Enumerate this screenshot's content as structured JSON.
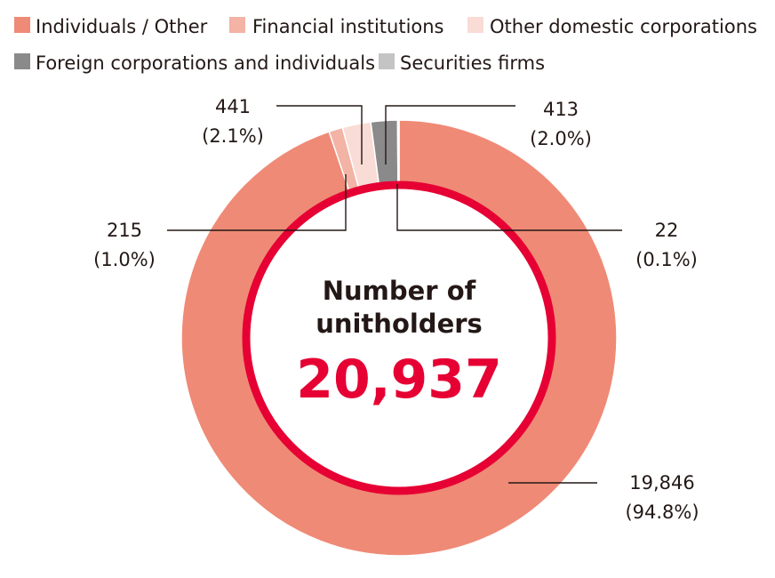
{
  "chart_data": {
    "type": "pie",
    "legend_position": "top",
    "center": {
      "title_line1": "Number of",
      "title_line2": "unitholders",
      "total": "20,937",
      "total_color": "#e60033"
    },
    "series": [
      {
        "name": "Individuals / Other",
        "value": 19846,
        "value_label": "19,846",
        "percent_label": "(94.8%)",
        "color": "#ef8a76"
      },
      {
        "name": "Financial institutions",
        "value": 215,
        "value_label": "215",
        "percent_label": "(1.0%)",
        "color": "#f3b3a5"
      },
      {
        "name": "Other domestic corporations",
        "value": 441,
        "value_label": "441",
        "percent_label": "(2.1%)",
        "color": "#f9dcd5"
      },
      {
        "name": "Foreign corporations and individuals",
        "value": 413,
        "value_label": "413",
        "percent_label": "(2.0%)",
        "color": "#8a8a8a"
      },
      {
        "name": "Securities firms",
        "value": 22,
        "value_label": "22",
        "percent_label": "(0.1%)",
        "color": "#c4c4c4"
      }
    ]
  }
}
